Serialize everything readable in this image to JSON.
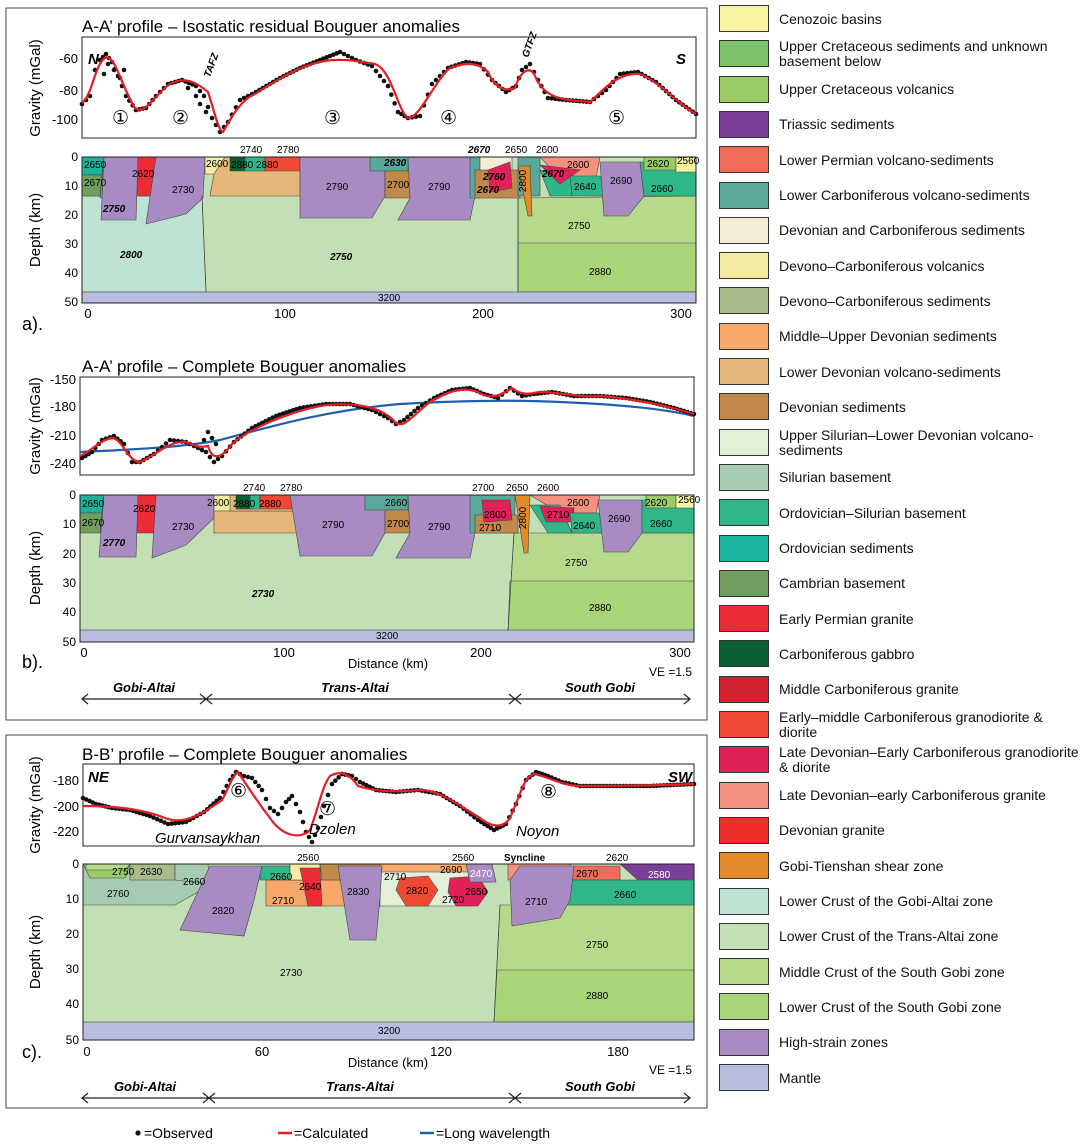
{
  "panels": {
    "a": {
      "title": "A-A’ profile – Isostatic residual Bouguer anomalies",
      "label": "a).",
      "end_left": "N",
      "end_right": "S",
      "grav_ylabel": "Gravity (mGal)",
      "grav_ticks": [
        "-60",
        "-80",
        "-100"
      ],
      "depth_ylabel": "Depth (km)",
      "depth_ticks": [
        "0",
        "10",
        "20",
        "30",
        "40",
        "50"
      ],
      "x_ticks": [
        "0",
        "100",
        "200",
        "300"
      ],
      "faults": [
        "TAFZ",
        "GTFZ"
      ],
      "zones": [
        "①",
        "②",
        "③",
        "④",
        "⑤"
      ],
      "densities": [
        "2650",
        "2670",
        "2620",
        "2730",
        "2750",
        "2600",
        "2740",
        "2880",
        "2880",
        "2780",
        "2790",
        "2630",
        "2700",
        "2790",
        "2670",
        "2650",
        "2600",
        "2760",
        "2670",
        "2800",
        "2600",
        "2670",
        "2640",
        "2690",
        "2620",
        "2660",
        "2560",
        "2800",
        "2750",
        "2750",
        "2880",
        "3200"
      ]
    },
    "b": {
      "title": "A-A’ profile – Complete Bouguer anomalies",
      "label": "b).",
      "grav_ylabel": "Gravity (mGal)",
      "grav_ticks": [
        "-150",
        "-180",
        "-210",
        "-240"
      ],
      "depth_ylabel": "Depth (km)",
      "depth_ticks": [
        "0",
        "10",
        "20",
        "30",
        "40",
        "50"
      ],
      "x_ticks": [
        "0",
        "100",
        "200",
        "300"
      ],
      "xlabel": "Distance (km)",
      "ve": "VE =1.5",
      "densities": [
        "2650",
        "2670",
        "2620",
        "2730",
        "2770",
        "2600",
        "2740",
        "2880",
        "2880",
        "2780",
        "2790",
        "2660",
        "2700",
        "2790",
        "2700",
        "2650",
        "2600",
        "2800",
        "2710",
        "2800",
        "2600",
        "2710",
        "2640",
        "2690",
        "2620",
        "2660",
        "2560",
        "2730",
        "2750",
        "2880",
        "3200"
      ],
      "domains": [
        "Gobi-Altai",
        "Trans-Altai",
        "South Gobi"
      ]
    },
    "c": {
      "title": "B-B’ profile – Complete Bouguer anomalies",
      "label": "c).",
      "end_left": "NE",
      "end_right": "SW",
      "grav_ylabel": "Gravity (mGal)",
      "grav_ticks": [
        "-180",
        "-200",
        "-220"
      ],
      "depth_ylabel": "Depth (km)",
      "depth_ticks": [
        "0",
        "10",
        "20",
        "30",
        "40",
        "50"
      ],
      "x_ticks": [
        "0",
        "60",
        "120",
        "180"
      ],
      "xlabel": "Distance (km)",
      "ve": "VE =1.5",
      "zones": [
        "⑥",
        "⑦",
        "⑧"
      ],
      "places": [
        "Gurvansaykhan",
        "Dzolen",
        "Noyon"
      ],
      "syncline": "Syncline",
      "densities": [
        "2750",
        "2630",
        "2660",
        "2760",
        "2820",
        "2560",
        "2660",
        "2640",
        "2710",
        "2830",
        "2560",
        "2690",
        "2710",
        "2820",
        "2720",
        "2650",
        "2470",
        "2710",
        "2620",
        "2670",
        "2580",
        "2660",
        "2730",
        "2750",
        "2880",
        "3200"
      ],
      "domains": [
        "Gobi-Altai",
        "Trans-Altai",
        "South Gobi"
      ]
    }
  },
  "key": {
    "observed": "=Observed",
    "calculated": "=Calculated",
    "long_wavelength": "=Long wavelength"
  },
  "legend": [
    {
      "label": "Cenozoic basins",
      "color": "#f7f3a1"
    },
    {
      "label": "Upper Cretaceous sediments and unknown basement below",
      "color": "#7dc36b"
    },
    {
      "label": "Upper Cretaceous volcanics",
      "color": "#99cc66"
    },
    {
      "label": "Triassic sediments",
      "color": "#7b3f98"
    },
    {
      "label": "Lower Permian volcano-sediments",
      "color": "#ef6c5a"
    },
    {
      "label": "Lower Carboniferous volcano-sediments",
      "color": "#5aa89a"
    },
    {
      "label": "Devonian and Carboniferous sediments",
      "color": "#f6ecd5"
    },
    {
      "label": "Devono–Carboniferous volcanics",
      "color": "#f4eda1"
    },
    {
      "label": "Devono–Carboniferous sediments",
      "color": "#a9bb8b"
    },
    {
      "label": "Middle–Upper Devonian sediments",
      "color": "#f6a86a"
    },
    {
      "label": "Lower Devonian volcano-sediments",
      "color": "#e5b87a"
    },
    {
      "label": "Devonian sediments",
      "color": "#c0894a"
    },
    {
      "label": "Upper Silurian–Lower Devonian volcano-sediments",
      "color": "#e3efd7"
    },
    {
      "label": "Silurian basement",
      "color": "#a6cbb1"
    },
    {
      "label": "Ordovician–Silurian basement",
      "color": "#2fb78a"
    },
    {
      "label": "Ordovician sediments",
      "color": "#1ab39c"
    },
    {
      "label": "Cambrian basement",
      "color": "#6f9e5f"
    },
    {
      "label": "Early Permian granite",
      "color": "#ec2b36"
    },
    {
      "label": "Carboniferous gabbro",
      "color": "#0a6030"
    },
    {
      "label": "Middle Carboniferous granite",
      "color": "#d4212f"
    },
    {
      "label": "Early–middle Carboniferous granodiorite & diorite",
      "color": "#ee4a33"
    },
    {
      "label": "Late Devonian–Early Carboniferous granodiorite & diorite",
      "color": "#e32159"
    },
    {
      "label": "Late Devonian–early Carboniferous granite",
      "color": "#f4907e"
    },
    {
      "label": "Devonian granite",
      "color": "#ee2d2d"
    },
    {
      "label": "Gobi-Tienshan shear zone",
      "color": "#e08a2b"
    },
    {
      "label": "Lower Crust of the Gobi-Altai zone",
      "color": "#bfe3d3"
    },
    {
      "label": "Lower Crust of the Trans-Altai zone",
      "color": "#c3dfb5"
    },
    {
      "label": "Middle Crust of the South Gobi zone",
      "color": "#b6d98b"
    },
    {
      "label": "Lower Crust of the South Gobi zone",
      "color": "#a9d477"
    },
    {
      "label": "High-strain zones",
      "color": "#a98bc4"
    },
    {
      "label": "Mantle",
      "color": "#b9bde0"
    }
  ]
}
